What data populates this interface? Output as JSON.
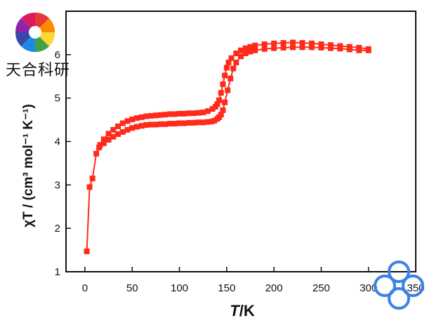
{
  "logo": {
    "text": "天合科研"
  },
  "colors": {
    "series": "#ff2a1a",
    "axis": "#111111",
    "watermark": "#3a82e6"
  },
  "chart_data": {
    "type": "line",
    "title": "",
    "xlabel_italic": "T",
    "xlabel_rest": "/K",
    "ylabel": "χT / (cm³ mol⁻¹ K⁻¹)",
    "xlim": [
      -20,
      350
    ],
    "ylim": [
      1,
      7
    ],
    "xticks": [
      0,
      50,
      100,
      150,
      200,
      250,
      300,
      350
    ],
    "yticks": [
      1,
      2,
      3,
      4,
      5,
      6
    ],
    "grid": false,
    "legend": "none",
    "series": [
      {
        "branch": "heating",
        "marker": "square",
        "x": [
          2,
          5,
          8,
          12,
          16,
          20,
          25,
          30,
          35,
          40,
          45,
          50,
          55,
          60,
          65,
          70,
          75,
          80,
          85,
          90,
          95,
          100,
          105,
          110,
          115,
          120,
          125,
          130,
          135,
          138,
          140,
          142,
          144,
          146,
          148,
          150,
          152,
          155,
          160,
          165,
          170,
          175,
          180,
          190,
          200,
          210,
          220,
          230,
          240,
          250,
          260,
          270,
          280,
          290,
          300
        ],
        "y": [
          1.47,
          2.95,
          3.15,
          3.72,
          3.92,
          4.05,
          4.18,
          4.27,
          4.35,
          4.42,
          4.47,
          4.51,
          4.54,
          4.56,
          4.58,
          4.59,
          4.6,
          4.61,
          4.62,
          4.63,
          4.63,
          4.64,
          4.64,
          4.65,
          4.65,
          4.66,
          4.67,
          4.7,
          4.75,
          4.8,
          4.86,
          4.95,
          5.12,
          5.32,
          5.52,
          5.7,
          5.82,
          5.92,
          6.03,
          6.1,
          6.15,
          6.18,
          6.21,
          6.24,
          6.26,
          6.27,
          6.28,
          6.27,
          6.26,
          6.24,
          6.22,
          6.2,
          6.18,
          6.16,
          6.13
        ]
      },
      {
        "branch": "cooling",
        "marker": "square",
        "x": [
          300,
          290,
          280,
          270,
          260,
          250,
          240,
          230,
          220,
          210,
          200,
          190,
          180,
          175,
          170,
          165,
          160,
          157,
          154,
          151,
          148,
          146,
          144,
          142,
          140,
          137,
          134,
          130,
          125,
          120,
          115,
          110,
          105,
          100,
          95,
          90,
          85,
          80,
          75,
          70,
          65,
          60,
          55,
          50,
          45,
          40,
          35,
          30,
          25,
          20,
          15
        ],
        "y": [
          6.1,
          6.1,
          6.12,
          6.14,
          6.15,
          6.16,
          6.17,
          6.17,
          6.17,
          6.16,
          6.15,
          6.13,
          6.1,
          6.07,
          6.03,
          5.96,
          5.82,
          5.68,
          5.45,
          5.18,
          4.9,
          4.72,
          4.62,
          4.56,
          4.52,
          4.48,
          4.46,
          4.45,
          4.44,
          4.44,
          4.43,
          4.43,
          4.42,
          4.42,
          4.41,
          4.41,
          4.4,
          4.4,
          4.39,
          4.39,
          4.38,
          4.36,
          4.34,
          4.31,
          4.27,
          4.22,
          4.17,
          4.11,
          4.04,
          3.96,
          3.86
        ]
      }
    ]
  }
}
